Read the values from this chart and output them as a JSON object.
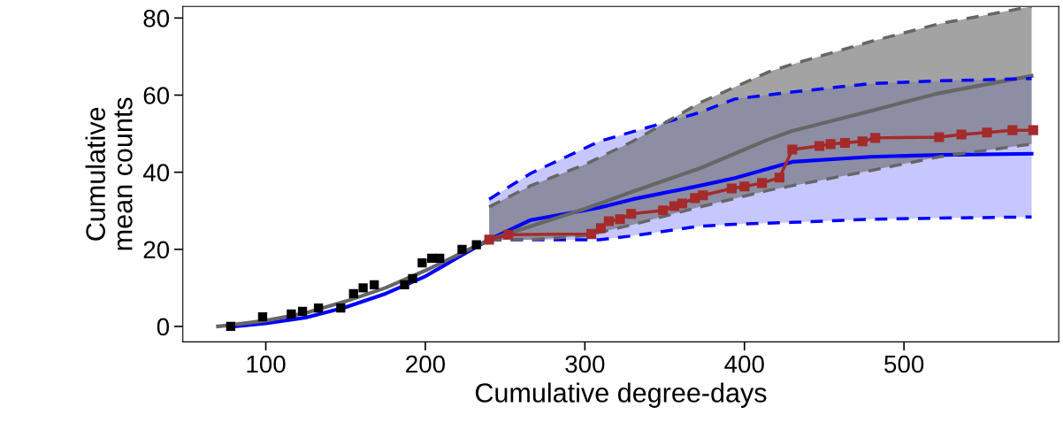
{
  "chart_data": {
    "type": "line",
    "xlabel": "Cumulative degree-days",
    "ylabel": "Cumulative\nmean counts",
    "xlim": [
      48,
      597
    ],
    "ylim": [
      -4,
      83
    ],
    "xticks": [
      100,
      200,
      300,
      400,
      500
    ],
    "yticks": [
      0,
      20,
      40,
      60,
      80
    ],
    "grid": false,
    "legend": false,
    "series": [
      {
        "color": "#0000ff",
        "x": [
          80,
          100,
          125,
          150,
          175,
          200,
          225,
          240,
          266,
          309,
          330,
          372,
          394,
          430,
          479,
          522,
          580
        ],
        "values": [
          0,
          0.8,
          2.3,
          5,
          8.5,
          13,
          19,
          22.5,
          27.6,
          30.8,
          33,
          36.5,
          38.5,
          42.7,
          44,
          44.5,
          44.8
        ],
        "lower": [
          null,
          null,
          null,
          null,
          null,
          null,
          null,
          22.5,
          22.5,
          22.5,
          23.5,
          26,
          26.5,
          27,
          27.8,
          28.1,
          28.4
        ],
        "upper": [
          null,
          null,
          null,
          null,
          null,
          null,
          null,
          33,
          39.7,
          48,
          50.5,
          55.5,
          59,
          60.8,
          63,
          63.7,
          64.3
        ]
      },
      {
        "color": "#666666",
        "x": [
          70,
          100,
          125,
          150,
          175,
          200,
          225,
          240,
          266,
          300,
          330,
          372,
          415,
          430,
          480,
          522,
          580
        ],
        "values": [
          0,
          1.5,
          3.5,
          6.5,
          10,
          14.5,
          19.5,
          22.5,
          26,
          30.5,
          35,
          41,
          48.5,
          50.7,
          56,
          60.5,
          65
        ],
        "lower": [
          null,
          null,
          null,
          null,
          null,
          null,
          null,
          22.5,
          22.5,
          23.5,
          26.4,
          31,
          35.3,
          36.5,
          40.5,
          44,
          47.3
        ],
        "upper": [
          null,
          null,
          null,
          null,
          null,
          null,
          null,
          31,
          36.5,
          42,
          48,
          58,
          66,
          68,
          74,
          78.5,
          83
        ]
      },
      {
        "color": "#0000ff",
        "line_style": "dashed",
        "x": [
          240,
          266,
          309,
          330,
          372,
          394,
          430,
          479,
          522,
          580
        ],
        "values": [
          22.5,
          22.5,
          22.5,
          23.5,
          26,
          26.5,
          27,
          27.8,
          28.1,
          28.4
        ]
      },
      {
        "color": "#0000ff",
        "line_style": "dashed",
        "x": [
          240,
          266,
          309,
          330,
          372,
          394,
          430,
          479,
          522,
          580
        ],
        "values": [
          33,
          39.7,
          48,
          50.5,
          55.5,
          59,
          60.8,
          63,
          63.7,
          64.3
        ]
      },
      {
        "color": "#666666",
        "line_style": "dashed",
        "x": [
          240,
          266,
          300,
          330,
          372,
          415,
          430,
          480,
          522,
          580
        ],
        "values": [
          22.5,
          22.5,
          23.5,
          26.4,
          31,
          35.3,
          36.5,
          40.5,
          44,
          47.3
        ]
      },
      {
        "color": "#666666",
        "line_style": "dashed",
        "x": [
          240,
          266,
          300,
          330,
          372,
          415,
          430,
          480,
          522,
          580
        ],
        "values": [
          31,
          36.5,
          42,
          48,
          58,
          66,
          68,
          74,
          78.5,
          83
        ]
      },
      {
        "type": "scatter",
        "color": "#000000",
        "marker": "square",
        "x": [
          78,
          98,
          116,
          123,
          133,
          147,
          155,
          161,
          168,
          187,
          192,
          198,
          204,
          209,
          223,
          232
        ],
        "values": [
          0,
          2.5,
          3.2,
          3.9,
          4.8,
          4.8,
          8.5,
          10,
          10.8,
          10.8,
          12.4,
          16.5,
          17.7,
          17.7,
          20,
          21.2
        ]
      },
      {
        "color": "#a52a2a",
        "marker": "square",
        "x": [
          240,
          252,
          304,
          310,
          315,
          322,
          329,
          349,
          356,
          361,
          369,
          374,
          392,
          400,
          411,
          422,
          430,
          447,
          454,
          463,
          474,
          482,
          522,
          536,
          552,
          568,
          581
        ],
        "values": [
          22.5,
          23.8,
          24,
          25.5,
          27.3,
          27.8,
          29.2,
          30.1,
          31.2,
          31.9,
          33.3,
          34,
          35.8,
          36.3,
          37.2,
          38.6,
          45.9,
          46.8,
          47.3,
          47.6,
          48,
          48.9,
          49.1,
          49.8,
          50.3,
          50.9,
          50.9
        ]
      }
    ]
  }
}
